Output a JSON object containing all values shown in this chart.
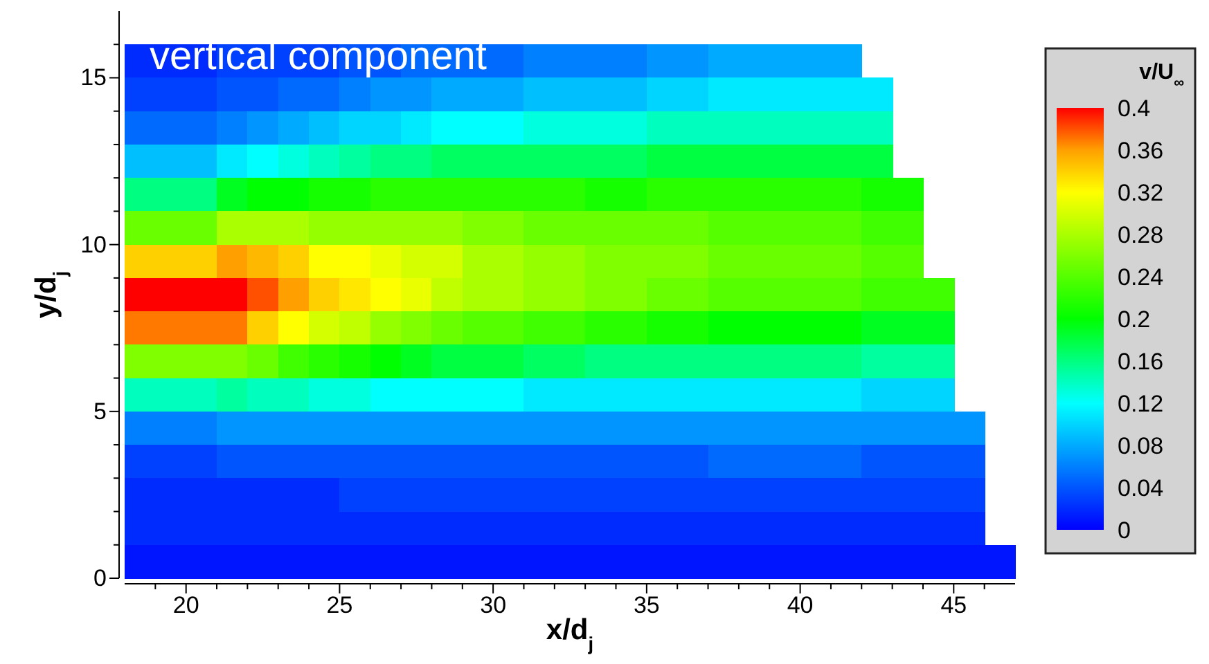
{
  "chart_data": {
    "type": "scatter",
    "marker": "square",
    "xlabel": "x/d$_{j}$",
    "ylabel": "y/d$_{j}$",
    "clabel": "v/U$_{∞}$",
    "annotations": [
      "vertical component"
    ],
    "xlim": [
      18,
      47
    ],
    "ylim": [
      0,
      17
    ],
    "xticks": [
      {
        "value": 19,
        "label": null
      },
      20,
      {
        "value": 21,
        "label": null
      },
      {
        "value": 22,
        "label": null
      },
      {
        "value": 23,
        "label": null
      },
      {
        "value": 24,
        "label": null
      },
      25,
      {
        "value": 26,
        "label": null
      },
      {
        "value": 27,
        "label": null
      },
      {
        "value": 28,
        "label": null
      },
      {
        "value": 29,
        "label": null
      },
      30,
      {
        "value": 31,
        "label": null
      },
      {
        "value": 32,
        "label": null
      },
      {
        "value": 33,
        "label": null
      },
      {
        "value": 34,
        "label": null
      },
      35,
      {
        "value": 36,
        "label": null
      },
      {
        "value": 37,
        "label": null
      },
      {
        "value": 38,
        "label": null
      },
      {
        "value": 39,
        "label": null
      },
      40,
      {
        "value": 41,
        "label": null
      },
      {
        "value": 42,
        "label": null
      },
      {
        "value": 43,
        "label": null
      },
      {
        "value": 44,
        "label": null
      },
      45,
      {
        "value": 46,
        "label": null
      }
    ],
    "yticks": [
      0,
      {
        "value": 1,
        "label": null
      },
      {
        "value": 2,
        "label": null
      },
      {
        "value": 3,
        "label": null
      },
      {
        "value": 4,
        "label": null
      },
      5,
      {
        "value": 6,
        "label": null
      },
      {
        "value": 7,
        "label": null
      },
      {
        "value": 8,
        "label": null
      },
      {
        "value": 9,
        "label": null
      },
      10,
      {
        "value": 11,
        "label": null
      },
      {
        "value": 12,
        "label": null
      },
      {
        "value": 13,
        "label": null
      },
      {
        "value": 14,
        "label": null
      },
      15,
      {
        "value": 16,
        "label": null
      }
    ],
    "clim": [
      0,
      0.4
    ],
    "cticks": [
      0,
      0.04,
      0.08,
      0.12,
      0.16,
      0.2,
      0.24,
      0.28,
      0.32,
      0.36,
      0.4
    ],
    "x": [
      18.5,
      19.5,
      20.5,
      21.5,
      22.5,
      23.5,
      24.5,
      25.5,
      26.5,
      27.5,
      28.5,
      29.5,
      30.5,
      31.5,
      32.5,
      33.5,
      34.5,
      35.5,
      36.5,
      37.5,
      38.5,
      39.5,
      40.5,
      41.5,
      18.5,
      19.5,
      20.5,
      21.5,
      22.5,
      23.5,
      24.5,
      25.5,
      26.5,
      27.5,
      28.5,
      29.5,
      30.5,
      31.5,
      32.5,
      33.5,
      34.5,
      35.5,
      36.5,
      37.5,
      38.5,
      39.5,
      40.5,
      41.5,
      42.5,
      18.5,
      19.5,
      20.5,
      21.5,
      22.5,
      23.5,
      24.5,
      25.5,
      26.5,
      27.5,
      28.5,
      29.5,
      30.5,
      31.5,
      32.5,
      33.5,
      34.5,
      35.5,
      36.5,
      37.5,
      38.5,
      39.5,
      40.5,
      41.5,
      42.5,
      18.5,
      19.5,
      20.5,
      21.5,
      22.5,
      23.5,
      24.5,
      25.5,
      26.5,
      27.5,
      28.5,
      29.5,
      30.5,
      31.5,
      32.5,
      33.5,
      34.5,
      35.5,
      36.5,
      37.5,
      38.5,
      39.5,
      40.5,
      41.5,
      42.5,
      18.5,
      19.5,
      20.5,
      21.5,
      22.5,
      23.5,
      24.5,
      25.5,
      26.5,
      27.5,
      28.5,
      29.5,
      30.5,
      31.5,
      32.5,
      33.5,
      34.5,
      35.5,
      36.5,
      37.5,
      38.5,
      39.5,
      40.5,
      41.5,
      42.5,
      43.5,
      18.5,
      19.5,
      20.5,
      21.5,
      22.5,
      23.5,
      24.5,
      25.5,
      26.5,
      27.5,
      28.5,
      29.5,
      30.5,
      31.5,
      32.5,
      33.5,
      34.5,
      35.5,
      36.5,
      37.5,
      38.5,
      39.5,
      40.5,
      41.5,
      42.5,
      43.5,
      18.5,
      19.5,
      20.5,
      21.5,
      22.5,
      23.5,
      24.5,
      25.5,
      26.5,
      27.5,
      28.5,
      29.5,
      30.5,
      31.5,
      32.5,
      33.5,
      34.5,
      35.5,
      36.5,
      37.5,
      38.5,
      39.5,
      40.5,
      41.5,
      42.5,
      43.5,
      18.5,
      19.5,
      20.5,
      21.5,
      22.5,
      23.5,
      24.5,
      25.5,
      26.5,
      27.5,
      28.5,
      29.5,
      30.5,
      31.5,
      32.5,
      33.5,
      34.5,
      35.5,
      36.5,
      37.5,
      38.5,
      39.5,
      40.5,
      41.5,
      42.5,
      43.5,
      44.5,
      18.5,
      19.5,
      20.5,
      21.5,
      22.5,
      23.5,
      24.5,
      25.5,
      26.5,
      27.5,
      28.5,
      29.5,
      30.5,
      31.5,
      32.5,
      33.5,
      34.5,
      35.5,
      36.5,
      37.5,
      38.5,
      39.5,
      40.5,
      41.5,
      42.5,
      43.5,
      44.5,
      18.5,
      19.5,
      20.5,
      21.5,
      22.5,
      23.5,
      24.5,
      25.5,
      26.5,
      27.5,
      28.5,
      29.5,
      30.5,
      31.5,
      32.5,
      33.5,
      34.5,
      35.5,
      36.5,
      37.5,
      38.5,
      39.5,
      40.5,
      41.5,
      42.5,
      43.5,
      44.5,
      18.5,
      19.5,
      20.5,
      21.5,
      22.5,
      23.5,
      24.5,
      25.5,
      26.5,
      27.5,
      28.5,
      29.5,
      30.5,
      31.5,
      32.5,
      33.5,
      34.5,
      35.5,
      36.5,
      37.5,
      38.5,
      39.5,
      40.5,
      41.5,
      42.5,
      43.5,
      44.5,
      18.5,
      19.5,
      20.5,
      21.5,
      22.5,
      23.5,
      24.5,
      25.5,
      26.5,
      27.5,
      28.5,
      29.5,
      30.5,
      31.5,
      32.5,
      33.5,
      34.5,
      35.5,
      36.5,
      37.5,
      38.5,
      39.5,
      40.5,
      41.5,
      42.5,
      43.5,
      44.5,
      45.5,
      18.5,
      19.5,
      20.5,
      21.5,
      22.5,
      23.5,
      24.5,
      25.5,
      26.5,
      27.5,
      28.5,
      29.5,
      30.5,
      31.5,
      32.5,
      33.5,
      34.5,
      35.5,
      36.5,
      37.5,
      38.5,
      39.5,
      40.5,
      41.5,
      42.5,
      43.5,
      44.5,
      45.5,
      18.5,
      19.5,
      20.5,
      21.5,
      22.5,
      23.5,
      24.5,
      25.5,
      26.5,
      27.5,
      28.5,
      29.5,
      30.5,
      31.5,
      32.5,
      33.5,
      34.5,
      35.5,
      36.5,
      37.5,
      38.5,
      39.5,
      40.5,
      41.5,
      42.5,
      43.5,
      44.5,
      45.5,
      18.5,
      19.5,
      20.5,
      21.5,
      22.5,
      23.5,
      24.5,
      25.5,
      26.5,
      27.5,
      28.5,
      29.5,
      30.5,
      31.5,
      32.5,
      33.5,
      34.5,
      35.5,
      36.5,
      37.5,
      38.5,
      39.5,
      40.5,
      41.5,
      42.5,
      43.5,
      44.5,
      45.5,
      18.5,
      19.5,
      20.5,
      21.5,
      22.5,
      23.5,
      24.5,
      25.5,
      26.5,
      27.5,
      28.5,
      29.5,
      30.5,
      31.5,
      32.5,
      33.5,
      34.5,
      35.5,
      36.5,
      37.5,
      38.5,
      39.5,
      40.5,
      41.5,
      42.5,
      43.5,
      44.5,
      45.5,
      46.5
    ],
    "values": [
      15.5,
      15.5,
      15.5,
      15.5,
      15.5,
      15.5,
      15.5,
      15.5,
      15.5,
      15.5,
      15.5,
      15.5,
      15.5,
      15.5,
      15.5,
      15.5,
      15.5,
      15.5,
      15.5,
      15.5,
      15.5,
      15.5,
      15.5,
      15.5,
      14.5,
      14.5,
      14.5,
      14.5,
      14.5,
      14.5,
      14.5,
      14.5,
      14.5,
      14.5,
      14.5,
      14.5,
      14.5,
      14.5,
      14.5,
      14.5,
      14.5,
      14.5,
      14.5,
      14.5,
      14.5,
      14.5,
      14.5,
      14.5,
      14.5,
      13.5,
      13.5,
      13.5,
      13.5,
      13.5,
      13.5,
      13.5,
      13.5,
      13.5,
      13.5,
      13.5,
      13.5,
      13.5,
      13.5,
      13.5,
      13.5,
      13.5,
      13.5,
      13.5,
      13.5,
      13.5,
      13.5,
      13.5,
      13.5,
      13.5,
      12.5,
      12.5,
      12.5,
      12.5,
      12.5,
      12.5,
      12.5,
      12.5,
      12.5,
      12.5,
      12.5,
      12.5,
      12.5,
      12.5,
      12.5,
      12.5,
      12.5,
      12.5,
      12.5,
      12.5,
      12.5,
      12.5,
      12.5,
      12.5,
      12.5,
      11.5,
      11.5,
      11.5,
      11.5,
      11.5,
      11.5,
      11.5,
      11.5,
      11.5,
      11.5,
      11.5,
      11.5,
      11.5,
      11.5,
      11.5,
      11.5,
      11.5,
      11.5,
      11.5,
      11.5,
      11.5,
      11.5,
      11.5,
      11.5,
      11.5,
      11.5,
      10.5,
      10.5,
      10.5,
      10.5,
      10.5,
      10.5,
      10.5,
      10.5,
      10.5,
      10.5,
      10.5,
      10.5,
      10.5,
      10.5,
      10.5,
      10.5,
      10.5,
      10.5,
      10.5,
      10.5,
      10.5,
      10.5,
      10.5,
      10.5,
      10.5,
      10.5,
      9.5,
      9.5,
      9.5,
      9.5,
      9.5,
      9.5,
      9.5,
      9.5,
      9.5,
      9.5,
      9.5,
      9.5,
      9.5,
      9.5,
      9.5,
      9.5,
      9.5,
      9.5,
      9.5,
      9.5,
      9.5,
      9.5,
      9.5,
      9.5,
      9.5,
      9.5,
      8.5,
      8.5,
      8.5,
      8.5,
      8.5,
      8.5,
      8.5,
      8.5,
      8.5,
      8.5,
      8.5,
      8.5,
      8.5,
      8.5,
      8.5,
      8.5,
      8.5,
      8.5,
      8.5,
      8.5,
      8.5,
      8.5,
      8.5,
      8.5,
      8.5,
      8.5,
      8.5,
      7.5,
      7.5,
      7.5,
      7.5,
      7.5,
      7.5,
      7.5,
      7.5,
      7.5,
      7.5,
      7.5,
      7.5,
      7.5,
      7.5,
      7.5,
      7.5,
      7.5,
      7.5,
      7.5,
      7.5,
      7.5,
      7.5,
      7.5,
      7.5,
      7.5,
      7.5,
      7.5,
      6.5,
      6.5,
      6.5,
      6.5,
      6.5,
      6.5,
      6.5,
      6.5,
      6.5,
      6.5,
      6.5,
      6.5,
      6.5,
      6.5,
      6.5,
      6.5,
      6.5,
      6.5,
      6.5,
      6.5,
      6.5,
      6.5,
      6.5,
      6.5,
      6.5,
      6.5,
      6.5,
      5.5,
      5.5,
      5.5,
      5.5,
      5.5,
      5.5,
      5.5,
      5.5,
      5.5,
      5.5,
      5.5,
      5.5,
      5.5,
      5.5,
      5.5,
      5.5,
      5.5,
      5.5,
      5.5,
      5.5,
      5.5,
      5.5,
      5.5,
      5.5,
      5.5,
      5.5,
      5.5,
      4.5,
      4.5,
      4.5,
      4.5,
      4.5,
      4.5,
      4.5,
      4.5,
      4.5,
      4.5,
      4.5,
      4.5,
      4.5,
      4.5,
      4.5,
      4.5,
      4.5,
      4.5,
      4.5,
      4.5,
      4.5,
      4.5,
      4.5,
      4.5,
      4.5,
      4.5,
      4.5,
      4.5,
      3.5,
      3.5,
      3.5,
      3.5,
      3.5,
      3.5,
      3.5,
      3.5,
      3.5,
      3.5,
      3.5,
      3.5,
      3.5,
      3.5,
      3.5,
      3.5,
      3.5,
      3.5,
      3.5,
      3.5,
      3.5,
      3.5,
      3.5,
      3.5,
      3.5,
      3.5,
      3.5,
      3.5,
      2.5,
      2.5,
      2.5,
      2.5,
      2.5,
      2.5,
      2.5,
      2.5,
      2.5,
      2.5,
      2.5,
      2.5,
      2.5,
      2.5,
      2.5,
      2.5,
      2.5,
      2.5,
      2.5,
      2.5,
      2.5,
      2.5,
      2.5,
      2.5,
      2.5,
      2.5,
      2.5,
      2.5,
      1.5,
      1.5,
      1.5,
      1.5,
      1.5,
      1.5,
      1.5,
      1.5,
      1.5,
      1.5,
      1.5,
      1.5,
      1.5,
      1.5,
      1.5,
      1.5,
      1.5,
      1.5,
      1.5,
      1.5,
      1.5,
      1.5,
      1.5,
      1.5,
      1.5,
      1.5,
      1.5,
      1.5,
      0.5,
      0.5,
      0.5,
      0.5,
      0.5,
      0.5,
      0.5,
      0.5,
      0.5,
      0.5,
      0.5,
      0.5,
      0.5,
      0.5,
      0.5,
      0.5,
      0.5,
      0.5,
      0.5,
      0.5,
      0.5,
      0.5,
      0.5,
      0.5,
      0.5,
      0.5,
      0.5,
      0.5,
      0.5
    ],
    "cvalues": [
      0.02,
      0.02,
      0.02,
      0.03,
      0.03,
      0.03,
      0.03,
      0.04,
      0.04,
      0.05,
      0.05,
      0.05,
      0.05,
      0.06,
      0.06,
      0.06,
      0.06,
      0.07,
      0.07,
      0.08,
      0.08,
      0.08,
      0.08,
      0.08,
      0.03,
      0.03,
      0.03,
      0.04,
      0.04,
      0.05,
      0.05,
      0.06,
      0.07,
      0.07,
      0.08,
      0.08,
      0.08,
      0.09,
      0.09,
      0.09,
      0.09,
      0.1,
      0.1,
      0.11,
      0.11,
      0.11,
      0.11,
      0.11,
      0.11,
      0.05,
      0.05,
      0.05,
      0.06,
      0.07,
      0.08,
      0.09,
      0.1,
      0.1,
      0.11,
      0.12,
      0.12,
      0.12,
      0.13,
      0.13,
      0.13,
      0.13,
      0.14,
      0.14,
      0.14,
      0.14,
      0.14,
      0.14,
      0.14,
      0.14,
      0.09,
      0.09,
      0.09,
      0.11,
      0.12,
      0.13,
      0.14,
      0.15,
      0.16,
      0.16,
      0.17,
      0.17,
      0.17,
      0.17,
      0.17,
      0.17,
      0.17,
      0.18,
      0.18,
      0.18,
      0.18,
      0.18,
      0.18,
      0.18,
      0.18,
      0.16,
      0.16,
      0.16,
      0.19,
      0.2,
      0.2,
      0.21,
      0.21,
      0.22,
      0.22,
      0.22,
      0.22,
      0.22,
      0.22,
      0.22,
      0.21,
      0.21,
      0.22,
      0.22,
      0.22,
      0.22,
      0.22,
      0.22,
      0.22,
      0.21,
      0.21,
      0.25,
      0.25,
      0.25,
      0.28,
      0.28,
      0.28,
      0.27,
      0.27,
      0.27,
      0.27,
      0.27,
      0.26,
      0.26,
      0.25,
      0.25,
      0.25,
      0.25,
      0.25,
      0.25,
      0.24,
      0.24,
      0.24,
      0.24,
      0.24,
      0.23,
      0.23,
      0.34,
      0.34,
      0.34,
      0.36,
      0.35,
      0.34,
      0.32,
      0.32,
      0.31,
      0.3,
      0.3,
      0.28,
      0.28,
      0.27,
      0.27,
      0.26,
      0.26,
      0.26,
      0.26,
      0.25,
      0.25,
      0.25,
      0.25,
      0.25,
      0.24,
      0.24,
      0.4,
      0.4,
      0.4,
      0.4,
      0.38,
      0.36,
      0.34,
      0.33,
      0.32,
      0.31,
      0.29,
      0.28,
      0.28,
      0.27,
      0.27,
      0.26,
      0.26,
      0.25,
      0.25,
      0.24,
      0.24,
      0.24,
      0.24,
      0.24,
      0.23,
      0.23,
      0.23,
      0.37,
      0.37,
      0.37,
      0.37,
      0.34,
      0.32,
      0.3,
      0.29,
      0.27,
      0.26,
      0.25,
      0.24,
      0.24,
      0.23,
      0.23,
      0.22,
      0.22,
      0.21,
      0.21,
      0.2,
      0.2,
      0.2,
      0.2,
      0.2,
      0.19,
      0.19,
      0.19,
      0.26,
      0.26,
      0.26,
      0.26,
      0.25,
      0.23,
      0.22,
      0.21,
      0.2,
      0.19,
      0.18,
      0.18,
      0.18,
      0.17,
      0.17,
      0.16,
      0.16,
      0.16,
      0.16,
      0.16,
      0.16,
      0.16,
      0.16,
      0.16,
      0.15,
      0.15,
      0.15,
      0.14,
      0.14,
      0.14,
      0.15,
      0.14,
      0.14,
      0.13,
      0.13,
      0.12,
      0.12,
      0.12,
      0.12,
      0.12,
      0.11,
      0.11,
      0.11,
      0.11,
      0.11,
      0.11,
      0.11,
      0.11,
      0.11,
      0.11,
      0.11,
      0.1,
      0.1,
      0.1,
      0.06,
      0.06,
      0.06,
      0.07,
      0.07,
      0.07,
      0.07,
      0.07,
      0.07,
      0.07,
      0.07,
      0.07,
      0.07,
      0.07,
      0.07,
      0.07,
      0.07,
      0.07,
      0.07,
      0.07,
      0.07,
      0.07,
      0.07,
      0.07,
      0.07,
      0.07,
      0.07,
      0.07,
      0.03,
      0.03,
      0.03,
      0.04,
      0.04,
      0.04,
      0.04,
      0.04,
      0.04,
      0.04,
      0.04,
      0.04,
      0.04,
      0.04,
      0.04,
      0.04,
      0.04,
      0.04,
      0.04,
      0.05,
      0.05,
      0.05,
      0.05,
      0.05,
      0.04,
      0.04,
      0.04,
      0.04,
      0.02,
      0.02,
      0.02,
      0.02,
      0.02,
      0.02,
      0.02,
      0.03,
      0.03,
      0.03,
      0.03,
      0.03,
      0.03,
      0.03,
      0.03,
      0.03,
      0.03,
      0.03,
      0.03,
      0.03,
      0.03,
      0.03,
      0.03,
      0.03,
      0.03,
      0.03,
      0.03,
      0.03,
      0.02,
      0.02,
      0.02,
      0.02,
      0.02,
      0.02,
      0.02,
      0.02,
      0.02,
      0.02,
      0.02,
      0.02,
      0.02,
      0.02,
      0.02,
      0.02,
      0.02,
      0.02,
      0.02,
      0.02,
      0.02,
      0.02,
      0.02,
      0.02,
      0.02,
      0.02,
      0.02,
      0.02,
      0.01,
      0.01,
      0.01,
      0.01,
      0.01,
      0.01,
      0.01,
      0.01,
      0.01,
      0.01,
      0.01,
      0.01,
      0.01,
      0.01,
      0.01,
      0.01,
      0.01,
      0.01,
      0.01,
      0.01,
      0.01,
      0.01,
      0.01,
      0.01,
      0.01,
      0.01,
      0.01,
      0.01,
      0.01
    ]
  }
}
